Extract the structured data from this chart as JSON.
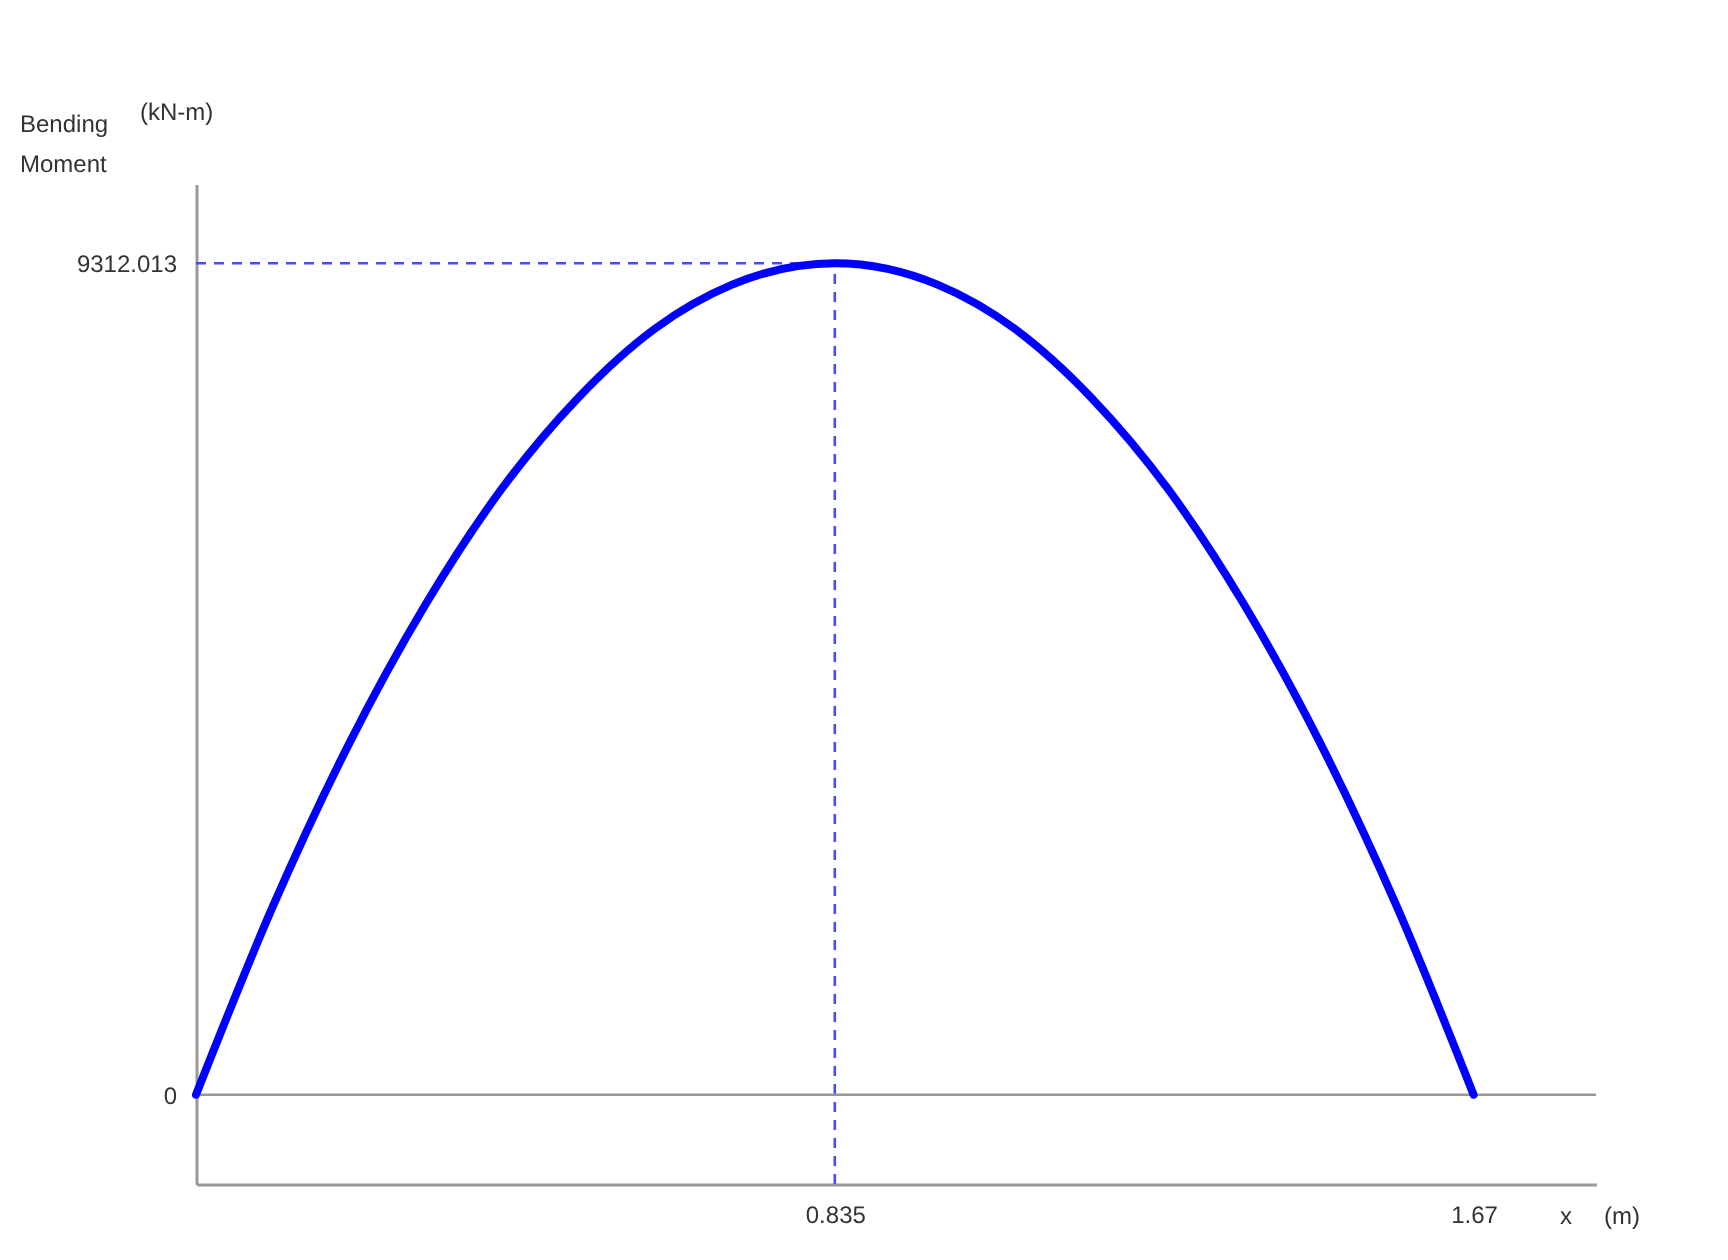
{
  "chart_data": {
    "type": "line",
    "ylabel": "Bending Moment",
    "xlabel": "x",
    "annotations": [
      "(kN-m)",
      "(m)"
    ],
    "x": [
      0,
      0.1,
      0.2,
      0.3,
      0.4,
      0.5,
      0.6,
      0.7,
      0.835,
      0.97,
      1.07,
      1.17,
      1.27,
      1.37,
      1.47,
      1.57,
      1.67
    ],
    "series": [
      {
        "color": "#0000ff",
        "values": [
          0,
          2100,
          3930,
          5490,
          6790,
          7810,
          8580,
          9070,
          9312.013,
          9070,
          8580,
          7810,
          6790,
          5490,
          3930,
          2100,
          0
        ]
      }
    ],
    "xlim": [
      0,
      1.83
    ],
    "xticks": [
      0.835,
      1.67
    ],
    "ylim": [
      -1000,
      10200
    ],
    "yticks": [
      0,
      9312.013
    ],
    "ref_lines": [
      {
        "axis": "y",
        "value": 9312.013,
        "color": "#4a4aff",
        "line_style": "dashed"
      },
      {
        "axis": "x",
        "value": 0.835,
        "color": "#4a4aff",
        "line_style": "dashed"
      },
      {
        "axis": "y",
        "value": 0,
        "color": "#999999",
        "line_style": "solid"
      }
    ],
    "grid": false,
    "line_style": "solid",
    "marker": "none"
  }
}
